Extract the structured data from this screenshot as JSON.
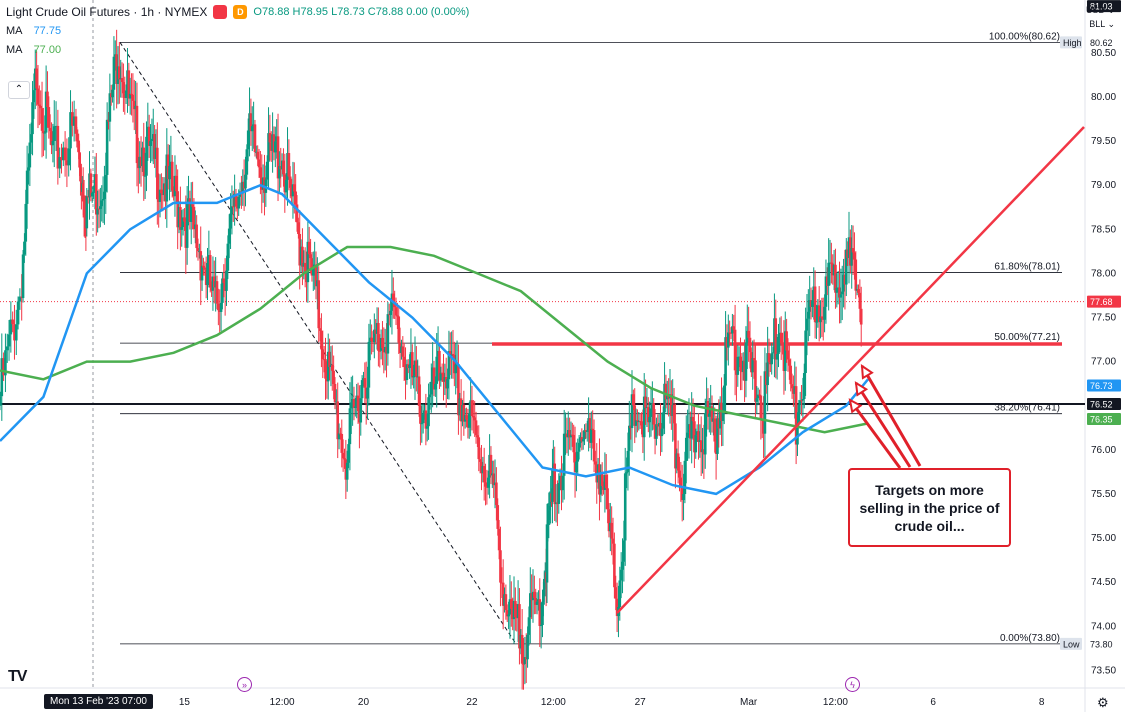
{
  "header": {
    "symbol": "Light Crude Oil Futures · 1h · NYMEX",
    "ohlc": "O78.88 H78.95 L78.73 C78.88 0.00 (0.00%)",
    "badge_1": "",
    "badge_2": "D"
  },
  "indicators": [
    {
      "label": "MA",
      "value": "77.75",
      "color": "#2196f3"
    },
    {
      "label": "MA",
      "value": "77.00",
      "color": "#4caf50"
    }
  ],
  "axis_top": {
    "currency": "USD",
    "unit": "BLL"
  },
  "colors": {
    "candle_up": "#089981",
    "candle_down": "#f23645",
    "ma_fast": "#2196f3",
    "ma_slow": "#4caf50",
    "trend": "#f23645",
    "annotation_border": "#e0202a"
  },
  "annotation": {
    "text": "Targets on more selling in the price of crude oil..."
  },
  "footer": {
    "date_pill": "Mon 13 Feb '23  07:00"
  },
  "chart_data": {
    "type": "candlestick",
    "title": "",
    "ylim": [
      73.3,
      81.1
    ],
    "yticks": [
      "73.50",
      "74.00",
      "74.50",
      "75.00",
      "75.50",
      "76.00",
      "76.50",
      "77.00",
      "77.50",
      "78.00",
      "78.50",
      "79.00",
      "79.50",
      "80.00",
      "80.50"
    ],
    "xticks": [
      {
        "label": "15",
        "x": 0.17
      },
      {
        "label": "12:00",
        "x": 0.26
      },
      {
        "label": "20",
        "x": 0.335
      },
      {
        "label": "22",
        "x": 0.435
      },
      {
        "label": "12:00",
        "x": 0.51
      },
      {
        "label": "27",
        "x": 0.59
      },
      {
        "label": "Mar",
        "x": 0.69
      },
      {
        "label": "12:00",
        "x": 0.77
      },
      {
        "label": "6",
        "x": 0.86
      },
      {
        "label": "8",
        "x": 0.96
      }
    ],
    "price_tags": [
      {
        "label": "81.03",
        "value": 81.03,
        "bg": "#131722",
        "fg": "#ffffff"
      },
      {
        "label": "80.62",
        "value": 80.62,
        "bg": "#ffffff",
        "fg": "#131722"
      },
      {
        "label": "High",
        "value": 80.62,
        "bg": "#dde3ec",
        "fg": "#131722",
        "left": true
      },
      {
        "label": "77.68",
        "value": 77.68,
        "bg": "#f23645",
        "fg": "#ffffff"
      },
      {
        "label": "76.73",
        "value": 76.73,
        "bg": "#2196f3",
        "fg": "#ffffff"
      },
      {
        "label": "76.52",
        "value": 76.52,
        "bg": "#131722",
        "fg": "#ffffff"
      },
      {
        "label": "76.35",
        "value": 76.35,
        "bg": "#4caf50",
        "fg": "#ffffff"
      },
      {
        "label": "73.80",
        "value": 73.8,
        "bg": "#ffffff",
        "fg": "#131722"
      },
      {
        "label": "Low",
        "value": 73.8,
        "bg": "#dde3ec",
        "fg": "#131722",
        "left": true
      }
    ],
    "fib_levels": [
      {
        "label": "100.00%(80.62)",
        "value": 80.62
      },
      {
        "label": "61.80%(78.01)",
        "value": 78.01
      },
      {
        "label": "50.00%(77.21)",
        "value": 77.21
      },
      {
        "label": "38.20%(76.41)",
        "value": 76.41
      },
      {
        "label": "0.00%(73.80)",
        "value": 73.8
      }
    ],
    "horizontal_support": 76.52,
    "red_resistance": 77.2,
    "series_close": [
      [
        0.0,
        76.5
      ],
      [
        0.02,
        77.8
      ],
      [
        0.035,
        80.3
      ],
      [
        0.05,
        79.3
      ],
      [
        0.07,
        79.6
      ],
      [
        0.08,
        78.8
      ],
      [
        0.095,
        79.0
      ],
      [
        0.11,
        80.6
      ],
      [
        0.125,
        79.6
      ],
      [
        0.14,
        79.3
      ],
      [
        0.155,
        79.0
      ],
      [
        0.17,
        78.7
      ],
      [
        0.185,
        78.3
      ],
      [
        0.2,
        77.6
      ],
      [
        0.215,
        78.5
      ],
      [
        0.23,
        79.5
      ],
      [
        0.245,
        79.2
      ],
      [
        0.26,
        79.4
      ],
      [
        0.275,
        78.5
      ],
      [
        0.29,
        77.9
      ],
      [
        0.305,
        76.8
      ],
      [
        0.32,
        75.9
      ],
      [
        0.335,
        76.8
      ],
      [
        0.35,
        77.3
      ],
      [
        0.365,
        77.5
      ],
      [
        0.38,
        76.8
      ],
      [
        0.395,
        76.4
      ],
      [
        0.41,
        77.0
      ],
      [
        0.425,
        76.6
      ],
      [
        0.44,
        76.1
      ],
      [
        0.455,
        75.6
      ],
      [
        0.47,
        74.0
      ],
      [
        0.485,
        73.9
      ],
      [
        0.5,
        74.3
      ],
      [
        0.51,
        75.5
      ],
      [
        0.525,
        76.0
      ],
      [
        0.54,
        76.2
      ],
      [
        0.555,
        75.8
      ],
      [
        0.57,
        74.3
      ],
      [
        0.585,
        76.5
      ],
      [
        0.6,
        76.2
      ],
      [
        0.615,
        76.5
      ],
      [
        0.63,
        75.7
      ],
      [
        0.645,
        76.3
      ],
      [
        0.66,
        76.2
      ],
      [
        0.675,
        77.3
      ],
      [
        0.69,
        77.0
      ],
      [
        0.705,
        76.5
      ],
      [
        0.72,
        77.5
      ],
      [
        0.735,
        76.3
      ],
      [
        0.75,
        77.6
      ],
      [
        0.765,
        77.8
      ],
      [
        0.78,
        78.2
      ],
      [
        0.795,
        77.7
      ]
    ],
    "ma_fast": [
      [
        0.0,
        76.1
      ],
      [
        0.04,
        76.6
      ],
      [
        0.08,
        78.0
      ],
      [
        0.12,
        78.5
      ],
      [
        0.16,
        78.8
      ],
      [
        0.2,
        78.8
      ],
      [
        0.24,
        79.0
      ],
      [
        0.26,
        78.9
      ],
      [
        0.3,
        78.4
      ],
      [
        0.34,
        77.9
      ],
      [
        0.38,
        77.5
      ],
      [
        0.42,
        77.0
      ],
      [
        0.46,
        76.4
      ],
      [
        0.5,
        75.8
      ],
      [
        0.54,
        75.7
      ],
      [
        0.58,
        75.8
      ],
      [
        0.62,
        75.6
      ],
      [
        0.66,
        75.5
      ],
      [
        0.7,
        75.8
      ],
      [
        0.74,
        76.2
      ],
      [
        0.78,
        76.5
      ],
      [
        0.8,
        76.8
      ]
    ],
    "ma_slow": [
      [
        0.0,
        76.9
      ],
      [
        0.04,
        76.8
      ],
      [
        0.08,
        77.0
      ],
      [
        0.12,
        77.0
      ],
      [
        0.16,
        77.1
      ],
      [
        0.2,
        77.3
      ],
      [
        0.24,
        77.6
      ],
      [
        0.28,
        78.0
      ],
      [
        0.32,
        78.3
      ],
      [
        0.36,
        78.3
      ],
      [
        0.4,
        78.2
      ],
      [
        0.44,
        78.0
      ],
      [
        0.48,
        77.8
      ],
      [
        0.52,
        77.4
      ],
      [
        0.56,
        77.0
      ],
      [
        0.6,
        76.7
      ],
      [
        0.64,
        76.5
      ],
      [
        0.68,
        76.4
      ],
      [
        0.72,
        76.3
      ],
      [
        0.76,
        76.2
      ],
      [
        0.8,
        76.3
      ]
    ]
  }
}
